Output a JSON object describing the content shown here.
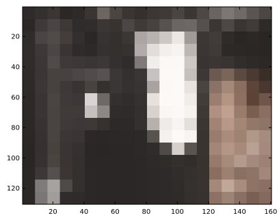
{
  "chart_data": {
    "type": "heatmap",
    "title": "",
    "xlabel": "",
    "ylabel": "",
    "colormap": "grayscale-tinted image (dark browns/greys, bright white center object, tan skin-tone patch at right)",
    "xlim": [
      0.5,
      160.5
    ],
    "ylim": [
      0.5,
      130.5
    ],
    "y_reversed": true,
    "grid": false,
    "pixel_grid_cols": 20,
    "pixel_grid_rows": 16,
    "x_ticks": [
      {
        "value": 20,
        "label": "20"
      },
      {
        "value": 40,
        "label": "40"
      },
      {
        "value": 60,
        "label": "60"
      },
      {
        "value": 80,
        "label": "80"
      },
      {
        "value": 100,
        "label": "100"
      },
      {
        "value": 120,
        "label": "120"
      },
      {
        "value": 140,
        "label": "140"
      },
      {
        "value": 160,
        "label": "160"
      }
    ],
    "y_ticks": [
      {
        "value": 20,
        "label": "20"
      },
      {
        "value": 40,
        "label": "40"
      },
      {
        "value": 60,
        "label": "60"
      },
      {
        "value": 80,
        "label": "80"
      },
      {
        "value": 100,
        "label": "100"
      },
      {
        "value": 120,
        "label": "120"
      }
    ],
    "cells": [
      [
        "#2e2b2a",
        "#34302e",
        "#3b3634",
        "#2a2726",
        "#2d2a29",
        "#3a3432",
        "#6c6560",
        "#4a4540",
        "#3a3532",
        "#35302d",
        "#3c3735",
        "#3f3a37",
        "#4a4542",
        "#3a3632",
        "#4d4845",
        "#6a6460",
        "#7c7774",
        "#6f6a67",
        "#5a5552",
        "#4c4744"
      ],
      [
        "#2b2827",
        "#3f3a38",
        "#4a4442",
        "#3e3937",
        "#2f2c2b",
        "#302d2c",
        "#3b3634",
        "#37332f",
        "#4c4744",
        "#3f3a37",
        "#474240",
        "#575250",
        "#6b6662",
        "#6d6865",
        "#55504c",
        "#3b3633",
        "#4d4845",
        "#3a3532",
        "#403b38",
        "#2e2a27"
      ],
      [
        "#2f2c2b",
        "#4a4442",
        "#504a48",
        "#433e3c",
        "#322f2e",
        "#2a2727",
        "#383331",
        "#34302e",
        "#3b3735",
        "#aba6a3",
        "#b8b3af",
        "#cdc8c4",
        "#ece7e3",
        "#a09b97",
        "#3c3735",
        "#423c39",
        "#2f2b28",
        "#2a2624",
        "#2c2825",
        "#2a2624"
      ],
      [
        "#302d2c",
        "#3e3937",
        "#4b4543",
        "#3a3534",
        "#2e2b2a",
        "#2c2928",
        "#353130",
        "#33302e",
        "#363230",
        "#b1aca9",
        "#e2ddd9",
        "#f2efec",
        "#f6f3f0",
        "#bcb7b3",
        "#3b3633",
        "#3f3a37",
        "#2d2926",
        "#2c2826",
        "#2b2725",
        "#2a2624"
      ],
      [
        "#2f2c2b",
        "#3c3736",
        "#504a48",
        "#3f3a39",
        "#3d3837",
        "#3a3635",
        "#3c3837",
        "#34302f",
        "#302c2b",
        "#7f7a77",
        "#f0edea",
        "#fbf8f5",
        "#fbf8f5",
        "#cdc8c4",
        "#393431",
        "#3b3633",
        "#3a3431",
        "#312d2a",
        "#2e2a28",
        "#2c2826"
      ],
      [
        "#2e2b2a",
        "#3b3635",
        "#48423f",
        "#47413f",
        "#4c4644",
        "#514b49",
        "#575250",
        "#3b3736",
        "#34302f",
        "#3a3635",
        "#c7c2bf",
        "#fcf9f6",
        "#fcf9f6",
        "#c5c0bc",
        "#3d3835",
        "#6c5a50",
        "#7a6658",
        "#5c4a40",
        "#4a3a32",
        "#3a2e28"
      ],
      [
        "#2d2a29",
        "#3c3736",
        "#48423f",
        "#3e3937",
        "#393433",
        "#49433f",
        "#35312f",
        "#3a3635",
        "#353130",
        "#383433",
        "#a8a39f",
        "#fbf8f5",
        "#fcf9f6",
        "#e8e3df",
        "#4a4440",
        "#8a7266",
        "#a48878",
        "#8a6e60",
        "#5c4438",
        "#4a3830"
      ],
      [
        "#2c2928",
        "#3a3534",
        "#4b4542",
        "#3f3a39",
        "#3d3837",
        "#d9d4d1",
        "#6e6966",
        "#33302e",
        "#312d2c",
        "#363231",
        "#e6e1dd",
        "#fcf9f6",
        "#fcf9f6",
        "#f1ece8",
        "#433d39",
        "#9a7e70",
        "#b39584",
        "#8d7062",
        "#5d4337",
        "#6e564a"
      ],
      [
        "#2c2928",
        "#3a3534",
        "#4a4441",
        "#403b39",
        "#403b39",
        "#c5c0bd",
        "#8d8885",
        "#2f2c2b",
        "#2e2b2a",
        "#33302f",
        "#d7d2ce",
        "#f9f6f3",
        "#fbf8f5",
        "#f6f3ef",
        "#3f3935",
        "#b09080",
        "#c0a090",
        "#9a7c6c",
        "#7a5e50",
        "#8a6e60"
      ],
      [
        "#2b2827",
        "#383332",
        "#4a4441",
        "#3f3a38",
        "#3d3837",
        "#3e3937",
        "#35312f",
        "#2c2928",
        "#2c2928",
        "#33302f",
        "#b6b1ad",
        "#eeebe8",
        "#f7f4f1",
        "#e4dfdb",
        "#3c3632",
        "#a28474",
        "#b89888",
        "#a38676",
        "#93786a",
        "#8c7466"
      ],
      [
        "#2a2726",
        "#373231",
        "#4a4441",
        "#3c3735",
        "#3a3534",
        "#2b2827",
        "#2a2726",
        "#2b2827",
        "#2b2827",
        "#2c2928",
        "#58534f",
        "#f4f1ee",
        "#fcf9f6",
        "#f7f4f1",
        "#3a3430",
        "#9a7c6e",
        "#aa8c7c",
        "#9e8272",
        "#b09888",
        "#a58c7e"
      ],
      [
        "#292625",
        "#363130",
        "#48423f",
        "#3a3533",
        "#363130",
        "#2a2726",
        "#292625",
        "#2a2726",
        "#2a2726",
        "#2c2928",
        "#2f2c2b",
        "#504b48",
        "#d5d0cc",
        "#5a5551",
        "#3a3430",
        "#a48676",
        "#b49686",
        "#a88a7a",
        "#b8a092",
        "#a38a7c"
      ],
      [
        "#292625",
        "#37322f",
        "#4a443f",
        "#3a3532",
        "#34302e",
        "#2a2726",
        "#2a2726",
        "#2a2726",
        "#2a2726",
        "#2b2827",
        "#2d2a29",
        "#302c2a",
        "#34302e",
        "#312d2b",
        "#393330",
        "#977a6c",
        "#a68a7a",
        "#b49a8c",
        "#a48a7c",
        "#9c8274"
      ],
      [
        "#2a2726",
        "#3d3835",
        "#54504d",
        "#3b3634",
        "#33302e",
        "#2b2827",
        "#2a2726",
        "#2a2726",
        "#2a2726",
        "#2b2827",
        "#2c2928",
        "#2d2a29",
        "#312d2b",
        "#34302e",
        "#393330",
        "#8a6e60",
        "#9c8072",
        "#8a7062",
        "#8d7466",
        "#a18878"
      ],
      [
        "#2b2827",
        "#7e7b79",
        "#a5a2a0",
        "#4e4a47",
        "#34302e",
        "#2b2827",
        "#2a2726",
        "#2a2726",
        "#2a2726",
        "#2b2827",
        "#2c2928",
        "#2d2a29",
        "#302c2a",
        "#35312f",
        "#383230",
        "#a48878",
        "#c0a898",
        "#a88c7e",
        "#8f7466",
        "#8a7062"
      ],
      [
        "#2b2827",
        "#7a7775",
        "#a09d9b",
        "#2f2c2b",
        "#2e2b2a",
        "#2b2827",
        "#2a2726",
        "#2a2726",
        "#2a2726",
        "#2b2827",
        "#2c2928",
        "#2d2a29",
        "#2f2b29",
        "#33302e",
        "#37312f",
        "#8c7262",
        "#9c8474",
        "#8a7062",
        "#7a6052",
        "#836a5c"
      ]
    ]
  }
}
